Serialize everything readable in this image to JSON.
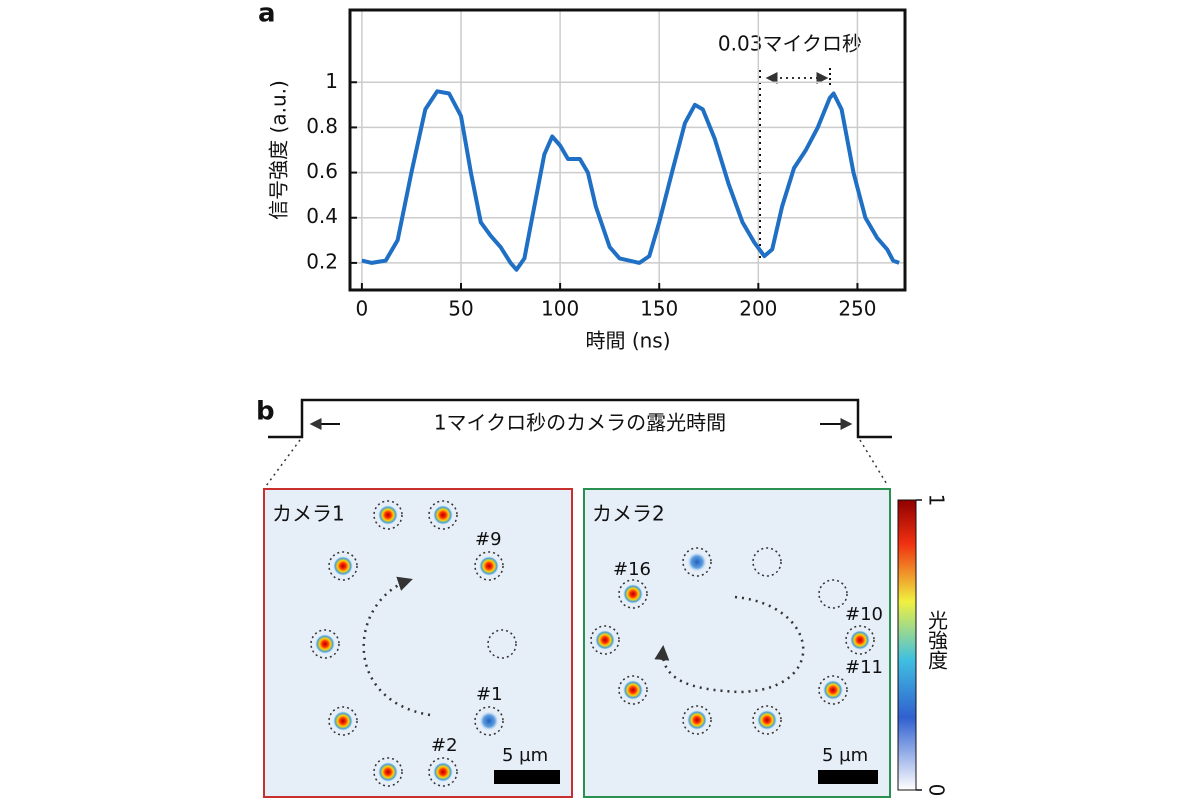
{
  "chart_data": {
    "type": "line",
    "panel_label": "a",
    "xlabel": "時間 (ns)",
    "ylabel": "信号強度 (a.u.)",
    "annotation": "0.03マイクロ秒",
    "x": [
      0,
      5,
      12,
      18,
      25,
      32,
      38,
      44,
      50,
      55,
      60,
      65,
      70,
      75,
      78,
      82,
      87,
      92,
      96,
      100,
      104,
      110,
      114,
      118,
      125,
      130,
      140,
      145,
      150,
      157,
      163,
      168,
      172,
      178,
      185,
      192,
      198,
      203,
      207,
      212,
      218,
      224,
      230,
      236,
      238,
      242,
      248,
      254,
      260,
      265,
      268,
      271
    ],
    "series": [
      {
        "name": "信号",
        "color": "#1f6fc5",
        "values": [
          0.21,
          0.2,
          0.21,
          0.3,
          0.6,
          0.88,
          0.96,
          0.95,
          0.85,
          0.6,
          0.38,
          0.32,
          0.27,
          0.2,
          0.17,
          0.22,
          0.45,
          0.68,
          0.76,
          0.72,
          0.66,
          0.66,
          0.6,
          0.45,
          0.27,
          0.22,
          0.2,
          0.23,
          0.38,
          0.62,
          0.82,
          0.9,
          0.88,
          0.75,
          0.55,
          0.38,
          0.29,
          0.23,
          0.26,
          0.45,
          0.62,
          0.7,
          0.8,
          0.93,
          0.95,
          0.88,
          0.6,
          0.4,
          0.31,
          0.26,
          0.21,
          0.2
        ]
      }
    ],
    "xlim": [
      -6,
      274
    ],
    "ylim": [
      0.08,
      1.32
    ],
    "xticks": [
      0,
      50,
      100,
      150,
      200,
      250
    ],
    "yticks": [
      0.2,
      0.4,
      0.6,
      0.8,
      1
    ],
    "grid": true
  },
  "panel_b": {
    "label": "b",
    "exposure": "1マイクロ秒のカメラの露光時間",
    "camera1": {
      "title": "カメラ1",
      "labels": [
        "#9",
        "#1",
        "#2"
      ],
      "scale": "5 µm"
    },
    "camera2": {
      "title": "カメラ2",
      "labels": [
        "#16",
        "#10",
        "#11"
      ],
      "scale": "5 µm"
    },
    "colorbar": {
      "title": "光強度",
      "ticks": [
        1,
        0
      ]
    }
  }
}
